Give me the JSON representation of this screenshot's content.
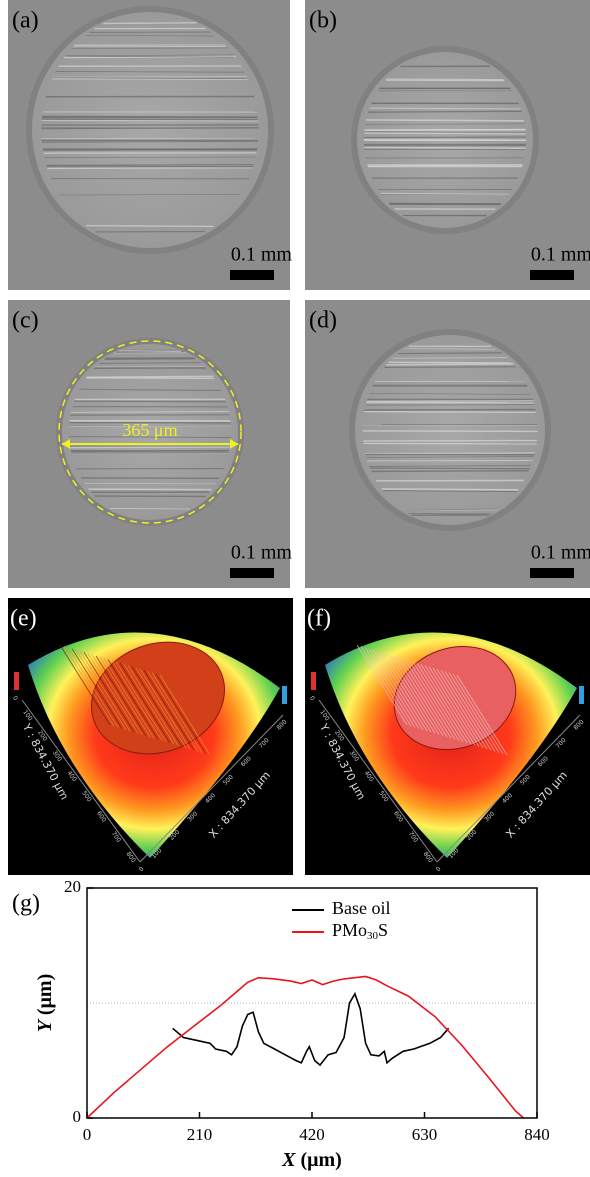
{
  "panels": [
    {
      "label": "(a)",
      "scale": "0.1 mm"
    },
    {
      "label": "(b)",
      "scale": "0.1 mm"
    },
    {
      "label": "(c)",
      "scale": "0.1 mm",
      "annotation": "365 μm"
    },
    {
      "label": "(d)",
      "scale": "0.1 mm"
    },
    {
      "label": "(e)",
      "y_axis": "Y : 834.370 μm",
      "x_axis": "X : 834.370 μm",
      "ticks": [
        0,
        100,
        200,
        300,
        400,
        500,
        600,
        700,
        800
      ]
    },
    {
      "label": "(f)",
      "y_axis": "Y : 834.370 μm",
      "x_axis": "X : 834.370 μm",
      "ticks": [
        0,
        100,
        200,
        300,
        400,
        500,
        600,
        700,
        800
      ]
    }
  ],
  "chart_data": {
    "type": "line",
    "label": "(g)",
    "x_label": "X (μm)",
    "y_label": "Y (μm)",
    "xlim": [
      0,
      840
    ],
    "ylim": [
      0,
      20
    ],
    "xticks": [
      0,
      210,
      420,
      630,
      840
    ],
    "yticks": [
      0,
      20
    ],
    "reference_line": 10,
    "legend": "upper center",
    "series": [
      {
        "name": "Base oil",
        "color": "#000000",
        "x": [
          160,
          180,
          200,
          230,
          240,
          260,
          270,
          280,
          290,
          300,
          310,
          320,
          330,
          350,
          370,
          390,
          400,
          410,
          415,
          425,
          435,
          450,
          465,
          480,
          490,
          500,
          510,
          520,
          530,
          545,
          555,
          560,
          570,
          590,
          610,
          640,
          660,
          675
        ],
        "values": [
          7.8,
          7.0,
          6.8,
          6.5,
          6.0,
          5.8,
          5.5,
          6.2,
          8.0,
          9.0,
          9.2,
          7.5,
          6.5,
          6.0,
          5.5,
          5.0,
          4.8,
          5.8,
          6.2,
          5.0,
          4.6,
          5.5,
          5.7,
          7.0,
          10.0,
          10.8,
          9.5,
          6.5,
          5.5,
          5.4,
          5.8,
          4.8,
          5.2,
          5.8,
          6.0,
          6.5,
          7.0,
          7.8
        ]
      },
      {
        "name": "PMo30S",
        "color": "#e8141b",
        "x": [
          0,
          50,
          100,
          150,
          200,
          250,
          280,
          300,
          320,
          350,
          380,
          400,
          420,
          440,
          460,
          480,
          500,
          520,
          540,
          560,
          600,
          650,
          700,
          750,
          800,
          815
        ],
        "values": [
          0,
          2.2,
          4.2,
          6.2,
          8.0,
          9.8,
          11.0,
          11.8,
          12.2,
          12.1,
          11.9,
          11.7,
          12.0,
          11.6,
          11.9,
          12.1,
          12.2,
          12.3,
          12.0,
          11.5,
          10.6,
          8.8,
          6.3,
          3.5,
          0.6,
          0
        ]
      }
    ]
  }
}
